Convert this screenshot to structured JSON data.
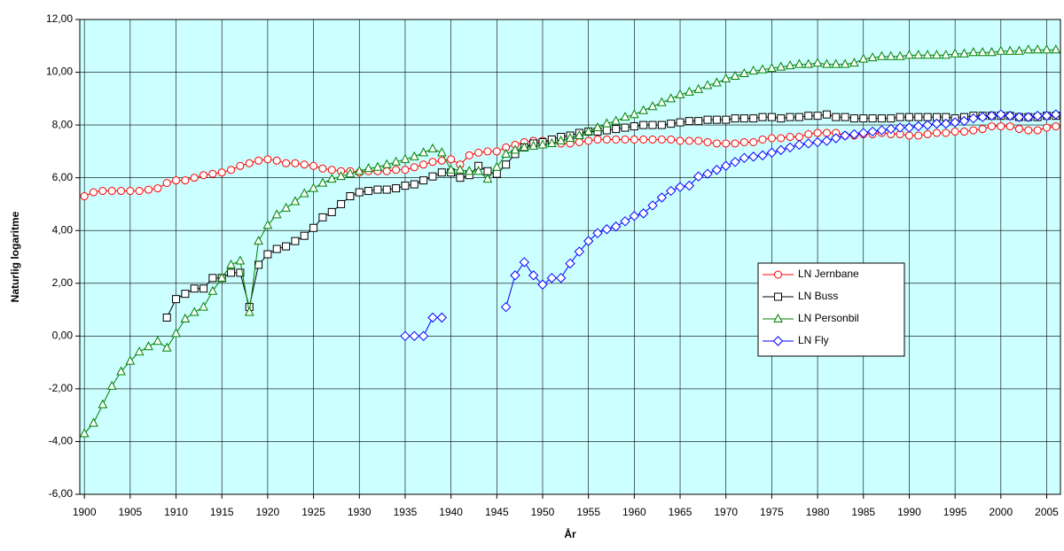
{
  "chart_data": {
    "type": "line",
    "x_label": "År",
    "y_label": "Naturlig logaritme",
    "x": [
      1900,
      1901,
      1902,
      1903,
      1904,
      1905,
      1906,
      1907,
      1908,
      1909,
      1910,
      1911,
      1912,
      1913,
      1914,
      1915,
      1916,
      1917,
      1918,
      1919,
      1920,
      1921,
      1922,
      1923,
      1924,
      1925,
      1926,
      1927,
      1928,
      1929,
      1930,
      1931,
      1932,
      1933,
      1934,
      1935,
      1936,
      1937,
      1938,
      1939,
      1940,
      1941,
      1942,
      1943,
      1944,
      1945,
      1946,
      1947,
      1948,
      1949,
      1950,
      1951,
      1952,
      1953,
      1954,
      1955,
      1956,
      1957,
      1958,
      1959,
      1960,
      1961,
      1962,
      1963,
      1964,
      1965,
      1966,
      1967,
      1968,
      1969,
      1970,
      1971,
      1972,
      1973,
      1974,
      1975,
      1976,
      1977,
      1978,
      1979,
      1980,
      1981,
      1982,
      1983,
      1984,
      1985,
      1986,
      1987,
      1988,
      1989,
      1990,
      1991,
      1992,
      1993,
      1994,
      1995,
      1996,
      1997,
      1998,
      1999,
      2000,
      2001,
      2002,
      2003,
      2004,
      2005,
      2006
    ],
    "xlim": [
      1899.5,
      2006.5
    ],
    "xticks": [
      1900,
      1905,
      1910,
      1915,
      1920,
      1925,
      1930,
      1935,
      1940,
      1945,
      1950,
      1955,
      1960,
      1965,
      1970,
      1975,
      1980,
      1985,
      1990,
      1995,
      2000,
      2005
    ],
    "ylim": [
      -6,
      12
    ],
    "yticks": [
      {
        "value": -6,
        "label": "-6,00"
      },
      {
        "value": -4,
        "label": "-4,00"
      },
      {
        "value": -2,
        "label": "-2,00"
      },
      {
        "value": 0,
        "label": "0,00"
      },
      {
        "value": 2,
        "label": "2,00"
      },
      {
        "value": 4,
        "label": "4,00"
      },
      {
        "value": 6,
        "label": "6,00"
      },
      {
        "value": 8,
        "label": "8,00"
      },
      {
        "value": 10,
        "label": "10,00"
      },
      {
        "value": 12,
        "label": "12,00"
      }
    ],
    "grid": true,
    "legend": "right",
    "series": [
      {
        "name": "LN Jernbane",
        "color": "#ff0000",
        "marker": "circle",
        "values": [
          5.3,
          5.45,
          5.5,
          5.5,
          5.5,
          5.5,
          5.5,
          5.55,
          5.6,
          5.8,
          5.9,
          5.9,
          6.0,
          6.1,
          6.15,
          6.2,
          6.3,
          6.45,
          6.55,
          6.65,
          6.7,
          6.65,
          6.55,
          6.55,
          6.5,
          6.45,
          6.35,
          6.3,
          6.25,
          6.25,
          6.2,
          6.25,
          6.25,
          6.25,
          6.3,
          6.3,
          6.4,
          6.5,
          6.6,
          6.65,
          6.7,
          6.5,
          6.85,
          6.95,
          7.0,
          7.0,
          7.15,
          7.25,
          7.35,
          7.4,
          7.4,
          7.35,
          7.3,
          7.3,
          7.35,
          7.4,
          7.45,
          7.45,
          7.45,
          7.45,
          7.45,
          7.45,
          7.45,
          7.45,
          7.45,
          7.4,
          7.4,
          7.4,
          7.35,
          7.3,
          7.3,
          7.3,
          7.35,
          7.35,
          7.45,
          7.5,
          7.5,
          7.55,
          7.55,
          7.65,
          7.7,
          7.7,
          7.7,
          7.6,
          7.6,
          7.65,
          7.65,
          7.7,
          7.65,
          7.65,
          7.6,
          7.6,
          7.65,
          7.7,
          7.7,
          7.75,
          7.75,
          7.8,
          7.85,
          7.95,
          7.95,
          7.95,
          7.85,
          7.8,
          7.8,
          7.9,
          7.95
        ]
      },
      {
        "name": "LN Buss",
        "color": "#000000",
        "marker": "square",
        "values": [
          null,
          null,
          null,
          null,
          null,
          null,
          null,
          null,
          null,
          0.7,
          1.4,
          1.6,
          1.8,
          1.8,
          2.2,
          2.2,
          2.4,
          2.4,
          1.1,
          2.7,
          3.1,
          3.3,
          3.4,
          3.6,
          3.8,
          4.1,
          4.5,
          4.7,
          5.0,
          5.3,
          5.45,
          5.5,
          5.55,
          5.55,
          5.6,
          5.7,
          5.75,
          5.9,
          6.05,
          6.2,
          6.2,
          6.0,
          6.1,
          6.45,
          6.25,
          6.15,
          6.5,
          6.9,
          7.15,
          7.3,
          7.35,
          7.45,
          7.55,
          7.6,
          7.7,
          7.75,
          7.75,
          7.8,
          7.85,
          7.9,
          7.95,
          8.0,
          8.0,
          8.0,
          8.05,
          8.1,
          8.15,
          8.15,
          8.2,
          8.2,
          8.2,
          8.25,
          8.25,
          8.25,
          8.3,
          8.3,
          8.25,
          8.3,
          8.3,
          8.35,
          8.35,
          8.4,
          8.3,
          8.3,
          8.25,
          8.25,
          8.25,
          8.25,
          8.25,
          8.3,
          8.3,
          8.3,
          8.3,
          8.3,
          8.3,
          8.25,
          8.3,
          8.35,
          8.35,
          8.35,
          8.35,
          8.35,
          8.3,
          8.3,
          8.3,
          8.35,
          8.35
        ]
      },
      {
        "name": "LN Personbil",
        "color": "#008000",
        "marker": "triangle",
        "values": [
          -3.7,
          -3.3,
          -2.6,
          -1.9,
          -1.35,
          -0.95,
          -0.6,
          -0.4,
          -0.2,
          -0.45,
          0.1,
          0.65,
          0.9,
          1.1,
          1.7,
          2.2,
          2.7,
          2.85,
          0.9,
          3.6,
          4.2,
          4.6,
          4.85,
          5.1,
          5.4,
          5.6,
          5.8,
          5.95,
          6.05,
          6.15,
          6.25,
          6.35,
          6.4,
          6.5,
          6.6,
          6.7,
          6.8,
          6.95,
          7.1,
          6.95,
          6.3,
          6.3,
          6.25,
          6.25,
          5.95,
          6.4,
          6.9,
          7.05,
          7.15,
          7.2,
          7.25,
          7.3,
          7.4,
          7.5,
          7.6,
          7.75,
          7.9,
          8.05,
          8.15,
          8.3,
          8.4,
          8.55,
          8.7,
          8.85,
          9.0,
          9.15,
          9.25,
          9.35,
          9.5,
          9.6,
          9.75,
          9.85,
          9.95,
          10.05,
          10.1,
          10.15,
          10.2,
          10.25,
          10.3,
          10.3,
          10.35,
          10.3,
          10.3,
          10.3,
          10.35,
          10.5,
          10.55,
          10.6,
          10.6,
          10.6,
          10.65,
          10.65,
          10.65,
          10.65,
          10.65,
          10.7,
          10.7,
          10.75,
          10.75,
          10.75,
          10.8,
          10.8,
          10.8,
          10.85,
          10.85,
          10.85,
          10.85
        ]
      },
      {
        "name": "LN Fly",
        "color": "#0000ff",
        "marker": "diamond",
        "values": [
          null,
          null,
          null,
          null,
          null,
          null,
          null,
          null,
          null,
          null,
          null,
          null,
          null,
          null,
          null,
          null,
          null,
          null,
          null,
          null,
          null,
          null,
          null,
          null,
          null,
          null,
          null,
          null,
          null,
          null,
          null,
          null,
          null,
          null,
          null,
          0.0,
          0.0,
          0.0,
          0.7,
          0.7,
          null,
          null,
          null,
          null,
          null,
          null,
          1.1,
          2.3,
          2.8,
          2.3,
          1.95,
          2.2,
          2.2,
          2.75,
          3.2,
          3.6,
          3.9,
          4.05,
          4.15,
          4.35,
          4.55,
          4.65,
          4.95,
          5.25,
          5.5,
          5.65,
          5.7,
          6.05,
          6.15,
          6.3,
          6.45,
          6.6,
          6.75,
          6.8,
          6.85,
          6.95,
          7.05,
          7.15,
          7.25,
          7.3,
          7.35,
          7.4,
          7.5,
          7.6,
          7.65,
          7.7,
          7.75,
          7.8,
          7.85,
          7.9,
          7.9,
          7.95,
          8.0,
          8.05,
          8.05,
          8.1,
          8.15,
          8.25,
          8.3,
          8.35,
          8.4,
          8.35,
          8.3,
          8.3,
          8.35,
          8.35,
          8.4
        ]
      }
    ]
  }
}
